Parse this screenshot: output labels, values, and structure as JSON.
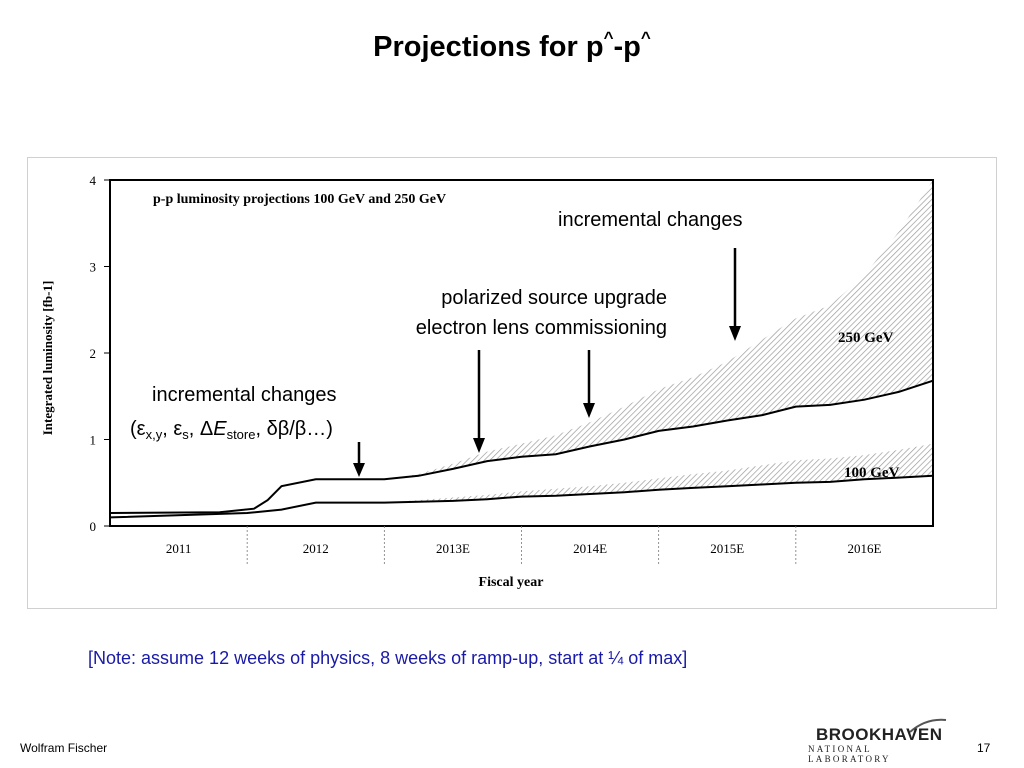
{
  "slide": {
    "title_main": "Projections for p",
    "title_sup1": "^",
    "title_dash": "-p",
    "title_sup2": "^",
    "note": "[Note: assume 12 weeks of physics, 8 weeks of ramp-up, start at ¼ of max]",
    "author": "Wolfram Fischer",
    "page_number": "17",
    "logo_main": "BROOKHAVEN",
    "logo_sub": "NATIONAL LABORATORY"
  },
  "annotations": {
    "top_right": "incremental changes",
    "mid_line1": "polarized source upgrade",
    "mid_line2": "electron lens commissioning",
    "left_line1": "incremental changes",
    "left_line2": "(εx,y, εs, ΔEstore, δβ/β…)"
  },
  "colors": {
    "note": "#1a1aa8",
    "hatch": "#9a9a9a",
    "line": "#000000"
  },
  "chart_data": {
    "type": "area",
    "title": "p-p luminosity projections 100 GeV and 250 GeV",
    "xlabel": "Fiscal year",
    "ylabel": "Integrated luminosity [fb-1]",
    "categories": [
      "2011",
      "2012",
      "2013E",
      "2014E",
      "2015E",
      "2016E"
    ],
    "xlim": [
      2010.5,
      2016.5
    ],
    "ylim": [
      0,
      4
    ],
    "yticks": [
      0,
      1,
      2,
      3,
      4
    ],
    "series": [
      {
        "name": "250 GeV",
        "kind": "line",
        "x": [
          2010.5,
          2011.3,
          2011.55,
          2011.65,
          2011.75,
          2012.0,
          2012.25,
          2012.5,
          2012.75,
          2013.0,
          2013.25,
          2013.5,
          2013.75,
          2014.0,
          2014.25,
          2014.5,
          2014.75,
          2015.0,
          2015.25,
          2015.5,
          2015.75,
          2016.0,
          2016.25,
          2016.5
        ],
        "y": [
          0.15,
          0.16,
          0.2,
          0.3,
          0.46,
          0.54,
          0.54,
          0.54,
          0.58,
          0.66,
          0.75,
          0.8,
          0.83,
          0.92,
          1.0,
          1.1,
          1.15,
          1.22,
          1.28,
          1.38,
          1.4,
          1.46,
          1.55,
          1.68
        ]
      },
      {
        "name": "250 GeV",
        "kind": "band_upper",
        "x": [
          2012.5,
          2012.75,
          2013.0,
          2013.25,
          2013.5,
          2013.75,
          2014.0,
          2014.25,
          2014.5,
          2014.75,
          2015.0,
          2015.25,
          2015.5,
          2015.75,
          2016.0,
          2016.25,
          2016.5
        ],
        "y": [
          0.54,
          0.6,
          0.72,
          0.86,
          0.95,
          1.05,
          1.2,
          1.38,
          1.58,
          1.72,
          1.9,
          2.15,
          2.4,
          2.55,
          2.9,
          3.4,
          4.0
        ]
      },
      {
        "name": "100 GeV",
        "kind": "line",
        "x": [
          2010.5,
          2011.5,
          2011.75,
          2012.0,
          2012.5,
          2012.75,
          2013.0,
          2013.25,
          2013.5,
          2013.75,
          2014.0,
          2014.25,
          2014.5,
          2014.75,
          2015.0,
          2015.25,
          2015.5,
          2015.75,
          2016.0,
          2016.25,
          2016.5
        ],
        "y": [
          0.1,
          0.15,
          0.19,
          0.27,
          0.27,
          0.28,
          0.29,
          0.31,
          0.34,
          0.35,
          0.37,
          0.39,
          0.42,
          0.44,
          0.46,
          0.48,
          0.5,
          0.51,
          0.54,
          0.56,
          0.58
        ]
      },
      {
        "name": "100 GeV",
        "kind": "band_upper",
        "x": [
          2012.5,
          2012.75,
          2013.0,
          2013.25,
          2013.5,
          2013.75,
          2014.0,
          2014.25,
          2014.5,
          2014.75,
          2015.0,
          2015.25,
          2015.5,
          2015.75,
          2016.0,
          2016.25,
          2016.5
        ],
        "y": [
          0.27,
          0.3,
          0.33,
          0.36,
          0.4,
          0.43,
          0.46,
          0.5,
          0.55,
          0.6,
          0.64,
          0.7,
          0.76,
          0.78,
          0.82,
          0.88,
          0.95
        ]
      }
    ],
    "band_labels": [
      "250 GeV",
      "100 GeV"
    ],
    "legend": "none",
    "grid": false
  }
}
